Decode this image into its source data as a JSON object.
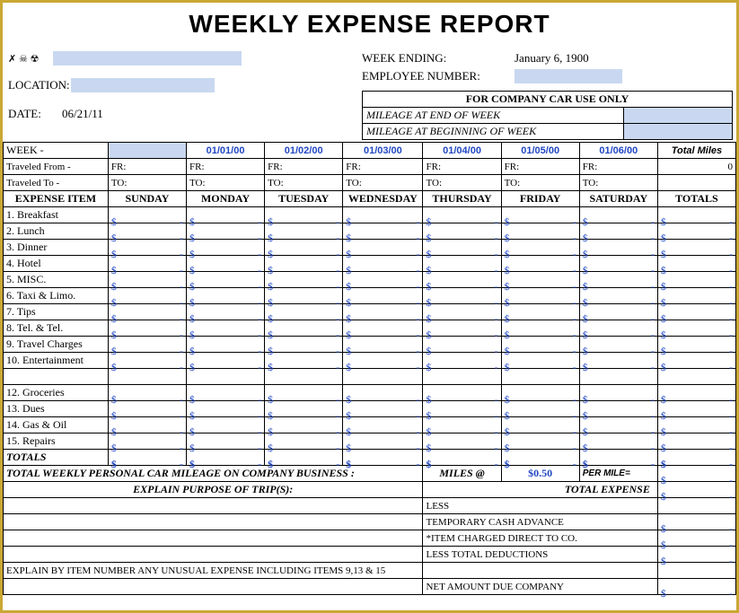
{
  "title": "WEEKLY EXPENSE REPORT",
  "header": {
    "week_ending_label": "WEEK ENDING:",
    "week_ending_value": "January 6, 1900",
    "employee_number_label": "EMPLOYEE NUMBER:",
    "location_label": "LOCATION:",
    "date_label": "DATE:",
    "date_value": "06/21/11",
    "name_glyphs": "✗ ☠ ☢"
  },
  "company_car": {
    "title": "FOR COMPANY CAR USE ONLY",
    "row1": "MILEAGE AT END OF WEEK",
    "row2": "MILEAGE AT BEGINNING OF WEEK"
  },
  "week": {
    "label": "WEEK -",
    "dates": [
      "",
      "01/01/00",
      "01/02/00",
      "01/03/00",
      "01/04/00",
      "01/05/00",
      "01/06/00"
    ],
    "total_miles_label": "Total Miles",
    "total_miles": "0"
  },
  "travel": {
    "from_label": "Traveled From -",
    "to_label": "Traveled To -",
    "fr": "FR:",
    "to": "TO:"
  },
  "columns": {
    "item": "EXPENSE ITEM",
    "days": [
      "SUNDAY",
      "MONDAY",
      "TUESDAY",
      "WEDNESDAY",
      "THURSDAY",
      "FRIDAY",
      "SATURDAY"
    ],
    "totals": "TOTALS"
  },
  "expense_items": [
    "1. Breakfast",
    "2. Lunch",
    "3. Dinner",
    "4. Hotel",
    "5.  MISC.",
    "6. Taxi & Limo.",
    "7. Tips",
    "8. Tel. & Tel.",
    "9. Travel Charges",
    "10. Entertainment",
    "",
    "12.  Groceries",
    "13. Dues",
    "14. Gas & Oil",
    "15. Repairs"
  ],
  "totals_label": "TOTALS",
  "currency": "$",
  "dash": "-",
  "mileage": {
    "label": "TOTAL WEEKLY PERSONAL CAR MILEAGE ON COMPANY BUSINESS :",
    "miles_at": "MILES @",
    "rate": "$0.50",
    "per_mile": "PER MILE=",
    "amount": "-"
  },
  "explain": {
    "trip_label": "EXPLAIN PURPOSE OF TRIP(S):",
    "total_expense_label": "TOTAL EXPENSE",
    "unusual_label": "EXPLAIN BY ITEM NUMBER ANY UNUSUAL EXPENSE INCLUDING ITEMS 9,13 & 15"
  },
  "deductions": {
    "less": "LESS",
    "advance": "TEMPORARY CASH ADVANCE",
    "direct": "*ITEM CHARGED DIRECT TO CO.",
    "less_total": "LESS TOTAL DEDUCTIONS",
    "net": "NET AMOUNT DUE COMPANY"
  },
  "style": {
    "fill_color": "#c9d8f0",
    "accent_color": "#2147c2",
    "border_gold": "#c9a834"
  }
}
